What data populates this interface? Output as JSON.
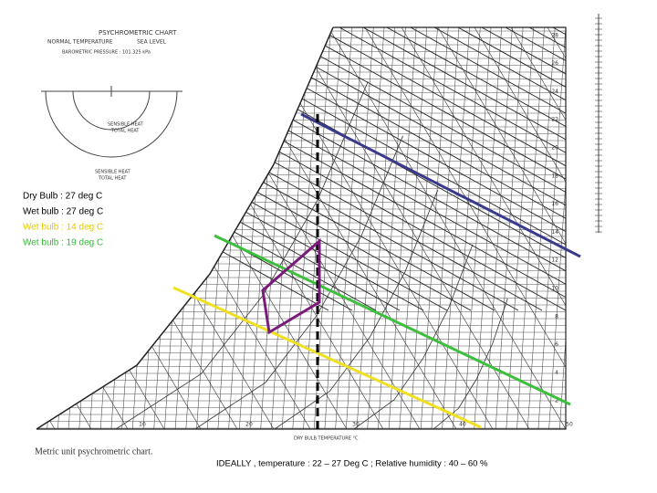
{
  "header": {
    "title": "PSYCHROMETRIC CHART",
    "subtitle_left": "NORMAL TEMPERATURE",
    "subtitle_right": "SEA LEVEL",
    "pressure": "BAROMETRIC PRESSURE : 101.325 kPa"
  },
  "protractor": {
    "upper_top": "SENSIBLE HEAT",
    "upper_bottom": "TOTAL HEAT",
    "lower_top": "SENSIBLE HEAT",
    "lower_bottom": "TOTAL HEAT"
  },
  "dry_bulb_axis": {
    "label": "DRY BULB TEMPERATURE °C",
    "ticks": [
      10,
      20,
      30,
      40,
      50
    ]
  },
  "humidity_axis": {
    "ticks": [
      2,
      4,
      6,
      8,
      10,
      12,
      14,
      16,
      18,
      20,
      22,
      24,
      26,
      28
    ]
  },
  "annotations": [
    {
      "text": "Dry Bulb : 27 deg C",
      "color": "#000000"
    },
    {
      "text": "Wet bulb : 27 deg C",
      "color": "#000000"
    },
    {
      "text": "Wet bulb : 14 deg C",
      "color": "#e8c800"
    },
    {
      "text": "Wet bulb : 19 deg C",
      "color": "#33bb33"
    }
  ],
  "caption": "Metric unit psychrometric chart.",
  "note": "IDEALLY , temperature : 22 – 27 Deg C ; Relative humidity : 40 – 60 %"
}
